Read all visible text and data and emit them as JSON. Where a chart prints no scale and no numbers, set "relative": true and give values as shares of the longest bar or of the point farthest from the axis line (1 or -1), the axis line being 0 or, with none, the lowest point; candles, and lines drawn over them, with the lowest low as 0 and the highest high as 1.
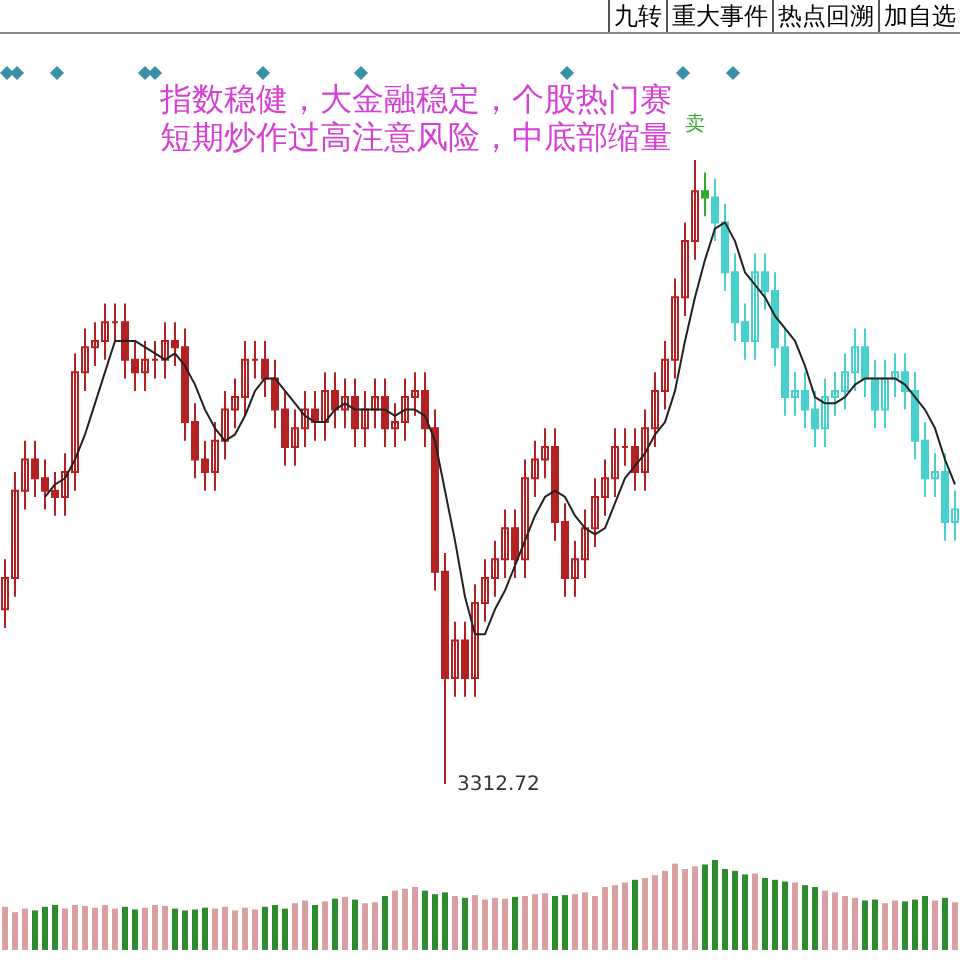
{
  "chart_data": [
    {
      "type": "candlestick",
      "relative": true,
      "categories": [
        null,
        null,
        null,
        null,
        null,
        null,
        null,
        null,
        null,
        null,
        null,
        null,
        null,
        null,
        null,
        null,
        null,
        null,
        null,
        null,
        null,
        null,
        null,
        null,
        null,
        null,
        null,
        null,
        null,
        null,
        null,
        null,
        null,
        null,
        null,
        null,
        null,
        null,
        null,
        null,
        null,
        null,
        null,
        null,
        null,
        null,
        null,
        null,
        null,
        null,
        null,
        null,
        null,
        null,
        null,
        null,
        null,
        null,
        null,
        null,
        null,
        null,
        null,
        null,
        null,
        null,
        null,
        null,
        null,
        null,
        null,
        null,
        null,
        null,
        null,
        null,
        null,
        null,
        null,
        null,
        null,
        null,
        null,
        null,
        null,
        null,
        null,
        null,
        null,
        null,
        null,
        null,
        null,
        null,
        null,
        null
      ],
      "ohlc": [
        [
          0.28,
          0.36,
          0.25,
          0.33
        ],
        [
          0.33,
          0.5,
          0.3,
          0.47
        ],
        [
          0.47,
          0.55,
          0.44,
          0.52
        ],
        [
          0.52,
          0.55,
          0.46,
          0.49
        ],
        [
          0.49,
          0.52,
          0.44,
          0.47
        ],
        [
          0.47,
          0.5,
          0.43,
          0.46
        ],
        [
          0.46,
          0.53,
          0.43,
          0.5
        ],
        [
          0.5,
          0.69,
          0.47,
          0.66
        ],
        [
          0.66,
          0.73,
          0.63,
          0.7
        ],
        [
          0.7,
          0.74,
          0.67,
          0.71
        ],
        [
          0.71,
          0.77,
          0.68,
          0.74
        ],
        [
          0.74,
          0.77,
          0.71,
          0.74
        ],
        [
          0.74,
          0.77,
          0.65,
          0.68
        ],
        [
          0.68,
          0.71,
          0.63,
          0.66
        ],
        [
          0.66,
          0.71,
          0.63,
          0.68
        ],
        [
          0.68,
          0.71,
          0.65,
          0.68
        ],
        [
          0.68,
          0.74,
          0.65,
          0.71
        ],
        [
          0.71,
          0.74,
          0.67,
          0.7
        ],
        [
          0.7,
          0.73,
          0.55,
          0.58
        ],
        [
          0.58,
          0.61,
          0.49,
          0.52
        ],
        [
          0.52,
          0.55,
          0.47,
          0.5
        ],
        [
          0.5,
          0.58,
          0.47,
          0.55
        ],
        [
          0.55,
          0.63,
          0.52,
          0.6
        ],
        [
          0.6,
          0.65,
          0.57,
          0.62
        ],
        [
          0.62,
          0.71,
          0.59,
          0.68
        ],
        [
          0.68,
          0.71,
          0.65,
          0.68
        ],
        [
          0.68,
          0.71,
          0.62,
          0.65
        ],
        [
          0.65,
          0.68,
          0.57,
          0.6
        ],
        [
          0.6,
          0.63,
          0.51,
          0.54
        ],
        [
          0.54,
          0.6,
          0.51,
          0.57
        ],
        [
          0.57,
          0.63,
          0.54,
          0.6
        ],
        [
          0.6,
          0.63,
          0.55,
          0.58
        ],
        [
          0.58,
          0.66,
          0.55,
          0.63
        ],
        [
          0.63,
          0.66,
          0.57,
          0.6
        ],
        [
          0.6,
          0.65,
          0.57,
          0.62
        ],
        [
          0.62,
          0.65,
          0.54,
          0.57
        ],
        [
          0.57,
          0.63,
          0.54,
          0.6
        ],
        [
          0.6,
          0.65,
          0.57,
          0.62
        ],
        [
          0.62,
          0.65,
          0.54,
          0.57
        ],
        [
          0.57,
          0.61,
          0.54,
          0.58
        ],
        [
          0.58,
          0.65,
          0.55,
          0.62
        ],
        [
          0.62,
          0.66,
          0.59,
          0.63
        ],
        [
          0.63,
          0.66,
          0.54,
          0.57
        ],
        [
          0.57,
          0.6,
          0.31,
          0.34
        ],
        [
          0.34,
          0.37,
          0,
          0.17
        ],
        [
          0.17,
          0.26,
          0.14,
          0.23
        ],
        [
          0.23,
          0.26,
          0.14,
          0.17
        ],
        [
          0.17,
          0.32,
          0.14,
          0.29
        ],
        [
          0.29,
          0.36,
          0.26,
          0.33
        ],
        [
          0.33,
          0.39,
          0.3,
          0.36
        ],
        [
          0.36,
          0.44,
          0.33,
          0.41
        ],
        [
          0.41,
          0.44,
          0.33,
          0.36
        ],
        [
          0.36,
          0.52,
          0.33,
          0.49
        ],
        [
          0.49,
          0.55,
          0.46,
          0.52
        ],
        [
          0.52,
          0.57,
          0.49,
          0.54
        ],
        [
          0.54,
          0.57,
          0.39,
          0.42
        ],
        [
          0.42,
          0.45,
          0.3,
          0.33
        ],
        [
          0.33,
          0.39,
          0.3,
          0.36
        ],
        [
          0.36,
          0.44,
          0.33,
          0.41
        ],
        [
          0.41,
          0.49,
          0.38,
          0.46
        ],
        [
          0.46,
          0.52,
          0.43,
          0.49
        ],
        [
          0.49,
          0.57,
          0.46,
          0.54
        ],
        [
          0.54,
          0.57,
          0.51,
          0.54
        ],
        [
          0.54,
          0.57,
          0.47,
          0.5
        ],
        [
          0.5,
          0.6,
          0.47,
          0.57
        ],
        [
          0.57,
          0.66,
          0.54,
          0.63
        ],
        [
          0.63,
          0.71,
          0.6,
          0.68
        ],
        [
          0.68,
          0.81,
          0.65,
          0.78
        ],
        [
          0.78,
          0.9,
          0.75,
          0.87
        ],
        [
          0.87,
          1,
          0.84,
          0.95
        ],
        [
          0.95,
          0.98,
          0.91,
          0.94
        ],
        [
          0.94,
          0.97,
          0.87,
          0.9
        ],
        [
          0.9,
          0.93,
          0.79,
          0.82
        ],
        [
          0.82,
          0.85,
          0.71,
          0.74
        ],
        [
          0.74,
          0.77,
          0.68,
          0.71
        ],
        [
          0.71,
          0.85,
          0.68,
          0.82
        ],
        [
          0.82,
          0.85,
          0.76,
          0.79
        ],
        [
          0.79,
          0.82,
          0.67,
          0.7
        ],
        [
          0.7,
          0.73,
          0.59,
          0.62
        ],
        [
          0.62,
          0.66,
          0.59,
          0.63
        ],
        [
          0.63,
          0.66,
          0.57,
          0.6
        ],
        [
          0.6,
          0.63,
          0.54,
          0.57
        ],
        [
          0.57,
          0.65,
          0.54,
          0.62
        ],
        [
          0.62,
          0.66,
          0.59,
          0.63
        ],
        [
          0.63,
          0.69,
          0.6,
          0.66
        ],
        [
          0.66,
          0.73,
          0.63,
          0.7
        ],
        [
          0.7,
          0.73,
          0.62,
          0.65
        ],
        [
          0.65,
          0.68,
          0.57,
          0.6
        ],
        [
          0.6,
          0.68,
          0.57,
          0.65
        ],
        [
          0.65,
          0.69,
          0.62,
          0.66
        ],
        [
          0.66,
          0.69,
          0.6,
          0.63
        ],
        [
          0.63,
          0.66,
          0.52,
          0.55
        ],
        [
          0.55,
          0.58,
          0.46,
          0.49
        ],
        [
          0.49,
          0.53,
          0.46,
          0.5
        ],
        [
          0.5,
          0.53,
          0.39,
          0.42
        ],
        [
          0.42,
          0.47,
          0.39,
          0.44
        ]
      ],
      "colors": [
        "#b22222",
        "#b22222",
        "#b22222",
        "#b22222",
        "#b22222",
        "#b22222",
        "#b22222",
        "#b22222",
        "#b22222",
        "#b22222",
        "#b22222",
        "#b22222",
        "#b22222",
        "#b22222",
        "#b22222",
        "#b22222",
        "#b22222",
        "#b22222",
        "#b22222",
        "#b22222",
        "#b22222",
        "#b22222",
        "#b22222",
        "#b22222",
        "#b22222",
        "#b22222",
        "#b22222",
        "#b22222",
        "#b22222",
        "#b22222",
        "#b22222",
        "#b22222",
        "#b22222",
        "#b22222",
        "#b22222",
        "#b22222",
        "#b22222",
        "#b22222",
        "#b22222",
        "#b22222",
        "#b22222",
        "#b22222",
        "#b22222",
        "#b22222",
        "#b22222",
        "#b22222",
        "#b22222",
        "#b22222",
        "#b22222",
        "#b22222",
        "#b22222",
        "#b22222",
        "#b22222",
        "#b22222",
        "#b22222",
        "#b22222",
        "#b22222",
        "#b22222",
        "#b22222",
        "#b22222",
        "#b22222",
        "#b22222",
        "#b22222",
        "#b22222",
        "#b22222",
        "#b22222",
        "#b22222",
        "#b22222",
        "#b22222",
        "#b22222",
        "#33aa33",
        "#48d1cc",
        "#48d1cc",
        "#48d1cc",
        "#48d1cc",
        "#48d1cc",
        "#48d1cc",
        "#48d1cc",
        "#48d1cc",
        "#48d1cc",
        "#48d1cc",
        "#48d1cc",
        "#48d1cc",
        "#48d1cc",
        "#48d1cc",
        "#48d1cc",
        "#48d1cc",
        "#48d1cc",
        "#48d1cc",
        "#48d1cc",
        "#48d1cc",
        "#48d1cc",
        "#48d1cc",
        "#48d1cc",
        "#48d1cc",
        "#48d1cc"
      ],
      "series": [
        {
          "type": "line",
          "color": "#222222",
          "values": [
            null,
            null,
            null,
            null,
            0.46,
            0.48,
            0.49,
            0.52,
            0.56,
            0.61,
            0.66,
            0.71,
            0.71,
            0.71,
            0.7,
            0.69,
            0.68,
            0.69,
            0.67,
            0.64,
            0.6,
            0.57,
            0.55,
            0.56,
            0.59,
            0.63,
            0.65,
            0.65,
            0.63,
            0.61,
            0.59,
            0.58,
            0.58,
            0.6,
            0.61,
            0.6,
            0.6,
            0.6,
            0.6,
            0.59,
            0.6,
            0.6,
            0.59,
            0.55,
            0.47,
            0.39,
            0.3,
            0.24,
            0.24,
            0.28,
            0.31,
            0.35,
            0.39,
            0.43,
            0.46,
            0.47,
            0.46,
            0.43,
            0.41,
            0.4,
            0.41,
            0.45,
            0.49,
            0.51,
            0.53,
            0.56,
            0.58,
            0.63,
            0.71,
            0.78,
            0.84,
            0.89,
            0.9,
            0.87,
            0.82,
            0.8,
            0.78,
            0.75,
            0.73,
            0.71,
            0.67,
            0.62,
            0.61,
            0.61,
            0.62,
            0.64,
            0.65,
            0.65,
            0.65,
            0.65,
            0.64,
            0.62,
            0.6,
            0.57,
            0.52,
            0.48
          ]
        }
      ],
      "annotations": [
        "指数稳健，大金融稳定，个股热门赛",
        "短期炒作过高注意风险，中底部缩量",
        "3312.72",
        "卖",
        "九转",
        "重大事件",
        "热点回溯",
        "加自选"
      ]
    },
    {
      "type": "bar",
      "relative": true,
      "categories": [
        null,
        null,
        null,
        null,
        null,
        null,
        null,
        null,
        null,
        null,
        null,
        null,
        null,
        null,
        null,
        null,
        null,
        null,
        null,
        null,
        null,
        null,
        null,
        null,
        null,
        null,
        null,
        null,
        null,
        null,
        null,
        null,
        null,
        null,
        null,
        null,
        null,
        null,
        null,
        null,
        null,
        null,
        null,
        null,
        null,
        null,
        null,
        null,
        null,
        null,
        null,
        null,
        null,
        null,
        null,
        null,
        null,
        null,
        null,
        null,
        null,
        null,
        null,
        null,
        null,
        null,
        null,
        null,
        null,
        null,
        null,
        null,
        null,
        null,
        null,
        null,
        null,
        null,
        null,
        null,
        null,
        null,
        null,
        null,
        null,
        null,
        null,
        null,
        null,
        null,
        null,
        null,
        null,
        null,
        null,
        null
      ],
      "values": [
        0.48,
        0.42,
        0.46,
        0.44,
        0.48,
        0.5,
        0.46,
        0.5,
        0.49,
        0.47,
        0.5,
        0.46,
        0.48,
        0.45,
        0.47,
        0.5,
        0.49,
        0.46,
        0.44,
        0.45,
        0.47,
        0.46,
        0.48,
        0.44,
        0.47,
        0.45,
        0.48,
        0.5,
        0.46,
        0.52,
        0.55,
        0.5,
        0.54,
        0.57,
        0.59,
        0.56,
        0.52,
        0.53,
        0.6,
        0.66,
        0.68,
        0.7,
        0.66,
        0.62,
        0.64,
        0.6,
        0.58,
        0.61,
        0.56,
        0.58,
        0.57,
        0.59,
        0.6,
        0.62,
        0.63,
        0.6,
        0.61,
        0.62,
        0.64,
        0.6,
        0.7,
        0.72,
        0.75,
        0.78,
        0.8,
        0.83,
        0.88,
        0.96,
        0.9,
        0.93,
        0.95,
        1,
        0.9,
        0.88,
        0.84,
        0.85,
        0.8,
        0.78,
        0.76,
        0.75,
        0.72,
        0.7,
        0.66,
        0.64,
        0.6,
        0.58,
        0.55,
        0.56,
        0.52,
        0.55,
        0.54,
        0.56,
        0.6,
        0.55,
        0.58,
        0.53
      ],
      "colors": [
        "#d8a0a0",
        "#d8a0a0",
        "#d8a0a0",
        "#2e8b2e",
        "#2e8b2e",
        "#2e8b2e",
        "#d8a0a0",
        "#d8a0a0",
        "#d8a0a0",
        "#d8a0a0",
        "#d8a0a0",
        "#d8a0a0",
        "#2e8b2e",
        "#2e8b2e",
        "#d8a0a0",
        "#d8a0a0",
        "#d8a0a0",
        "#2e8b2e",
        "#2e8b2e",
        "#2e8b2e",
        "#2e8b2e",
        "#d8a0a0",
        "#d8a0a0",
        "#d8a0a0",
        "#d8a0a0",
        "#d8a0a0",
        "#2e8b2e",
        "#2e8b2e",
        "#2e8b2e",
        "#d8a0a0",
        "#d8a0a0",
        "#2e8b2e",
        "#d8a0a0",
        "#2e8b2e",
        "#d8a0a0",
        "#2e8b2e",
        "#d8a0a0",
        "#d8a0a0",
        "#2e8b2e",
        "#d8a0a0",
        "#d8a0a0",
        "#d8a0a0",
        "#2e8b2e",
        "#2e8b2e",
        "#2e8b2e",
        "#d8a0a0",
        "#2e8b2e",
        "#d8a0a0",
        "#d8a0a0",
        "#d8a0a0",
        "#d8a0a0",
        "#2e8b2e",
        "#d8a0a0",
        "#d8a0a0",
        "#d8a0a0",
        "#2e8b2e",
        "#2e8b2e",
        "#d8a0a0",
        "#d8a0a0",
        "#d8a0a0",
        "#d8a0a0",
        "#d8a0a0",
        "#d8a0a0",
        "#2e8b2e",
        "#d8a0a0",
        "#d8a0a0",
        "#d8a0a0",
        "#d8a0a0",
        "#d8a0a0",
        "#d8a0a0",
        "#2e8b2e",
        "#2e8b2e",
        "#2e8b2e",
        "#2e8b2e",
        "#2e8b2e",
        "#d8a0a0",
        "#2e8b2e",
        "#2e8b2e",
        "#2e8b2e",
        "#d8a0a0",
        "#2e8b2e",
        "#2e8b2e",
        "#d8a0a0",
        "#d8a0a0",
        "#d8a0a0",
        "#d8a0a0",
        "#2e8b2e",
        "#2e8b2e",
        "#d8a0a0",
        "#d8a0a0",
        "#2e8b2e",
        "#2e8b2e",
        "#2e8b2e",
        "#d8a0a0",
        "#2e8b2e",
        "#d8a0a0"
      ]
    }
  ]
}
